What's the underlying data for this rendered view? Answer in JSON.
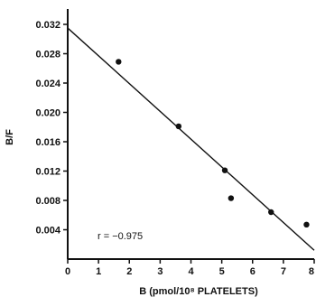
{
  "chart_data": {
    "type": "scatter",
    "xlabel": "B (pmol/10⁸ PLATELETS)",
    "ylabel": "B/F",
    "xlim": [
      0,
      8
    ],
    "ylim": [
      0,
      0.032
    ],
    "x_ticks": [
      "0",
      "1",
      "2",
      "3",
      "4",
      "5",
      "6",
      "7",
      "8"
    ],
    "y_ticks": [
      "0.004",
      "0.008",
      "0.012",
      "0.016",
      "0.020",
      "0.024",
      "0.028",
      "0.032"
    ],
    "points": [
      {
        "x": 1.65,
        "y": 0.0269
      },
      {
        "x": 3.6,
        "y": 0.0181
      },
      {
        "x": 5.1,
        "y": 0.0121
      },
      {
        "x": 5.3,
        "y": 0.0083
      },
      {
        "x": 6.6,
        "y": 0.0064
      },
      {
        "x": 7.75,
        "y": 0.0047
      }
    ],
    "fit_line": {
      "x": [
        0,
        8
      ],
      "y": [
        0.0315,
        0.0012
      ]
    },
    "annotation": "r = −0.975",
    "grid": false
  }
}
